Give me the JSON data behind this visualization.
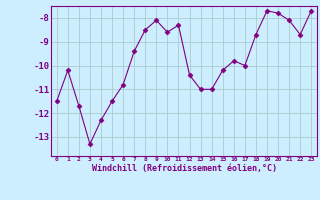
{
  "x": [
    0,
    1,
    2,
    3,
    4,
    5,
    6,
    7,
    8,
    9,
    10,
    11,
    12,
    13,
    14,
    15,
    16,
    17,
    18,
    19,
    20,
    21,
    22,
    23
  ],
  "y": [
    -11.5,
    -10.2,
    -11.7,
    -13.3,
    -12.3,
    -11.5,
    -10.8,
    -9.4,
    -8.5,
    -8.1,
    -8.6,
    -8.3,
    -10.4,
    -11.0,
    -11.0,
    -10.2,
    -9.8,
    -10.0,
    -8.7,
    -7.7,
    -7.8,
    -8.1,
    -8.7,
    -7.7
  ],
  "xlabel": "Windchill (Refroidissement éolien,°C)",
  "ylim": [
    -13.8,
    -7.5
  ],
  "xlim": [
    -0.5,
    23.5
  ],
  "yticks": [
    -13,
    -12,
    -11,
    -10,
    -9,
    -8
  ],
  "xticks": [
    0,
    1,
    2,
    3,
    4,
    5,
    6,
    7,
    8,
    9,
    10,
    11,
    12,
    13,
    14,
    15,
    16,
    17,
    18,
    19,
    20,
    21,
    22,
    23
  ],
  "line_color": "#800080",
  "marker": "D",
  "marker_size": 2.5,
  "bg_color": "#cceeff",
  "grid_color": "#aacccc",
  "spine_color": "#800080"
}
